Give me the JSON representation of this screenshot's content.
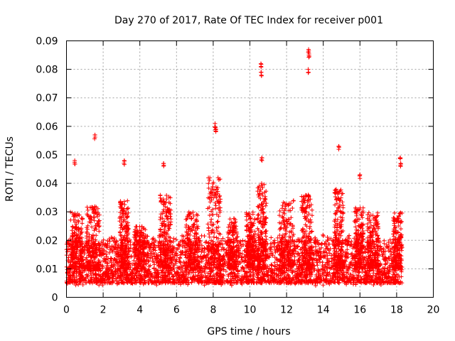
{
  "chart_data": {
    "type": "scatter",
    "title": "Day 270 of 2017, Rate Of TEC Index for receiver p001",
    "xlabel": "GPS time / hours",
    "ylabel": "ROTI / TECUs",
    "xlim": [
      0,
      20
    ],
    "ylim": [
      0,
      0.09
    ],
    "xticks": [
      0,
      2,
      4,
      6,
      8,
      10,
      12,
      14,
      16,
      18,
      20
    ],
    "xtick_labels": [
      "0",
      "2",
      "4",
      "6",
      "8",
      "10",
      "12",
      "14",
      "16",
      "18",
      "20"
    ],
    "yticks": [
      0,
      0.01,
      0.02,
      0.03,
      0.04,
      0.05,
      0.06,
      0.07,
      0.08,
      0.09
    ],
    "ytick_labels": [
      "0",
      "0.01",
      "0.02",
      "0.03",
      "0.04",
      "0.05",
      "0.06",
      "0.07",
      "0.08",
      "0.09"
    ],
    "grid": true,
    "series": [
      {
        "name": "ROTI",
        "color": "#ff0000",
        "marker": "plus",
        "x_range": [
          0,
          18.3
        ],
        "baseline_range": [
          0.005,
          0.02
        ],
        "notable_points": [
          {
            "x": 0.45,
            "y": 0.048
          },
          {
            "x": 1.55,
            "y": 0.057
          },
          {
            "x": 3.15,
            "y": 0.048
          },
          {
            "x": 5.3,
            "y": 0.047
          },
          {
            "x": 8.1,
            "y": 0.061
          },
          {
            "x": 8.15,
            "y": 0.059
          },
          {
            "x": 10.6,
            "y": 0.082
          },
          {
            "x": 10.62,
            "y": 0.079
          },
          {
            "x": 10.65,
            "y": 0.049
          },
          {
            "x": 13.2,
            "y": 0.087
          },
          {
            "x": 13.22,
            "y": 0.085
          },
          {
            "x": 13.18,
            "y": 0.08
          },
          {
            "x": 14.85,
            "y": 0.053
          },
          {
            "x": 16.0,
            "y": 0.043
          },
          {
            "x": 18.2,
            "y": 0.049
          },
          {
            "x": 18.22,
            "y": 0.047
          }
        ]
      }
    ]
  }
}
